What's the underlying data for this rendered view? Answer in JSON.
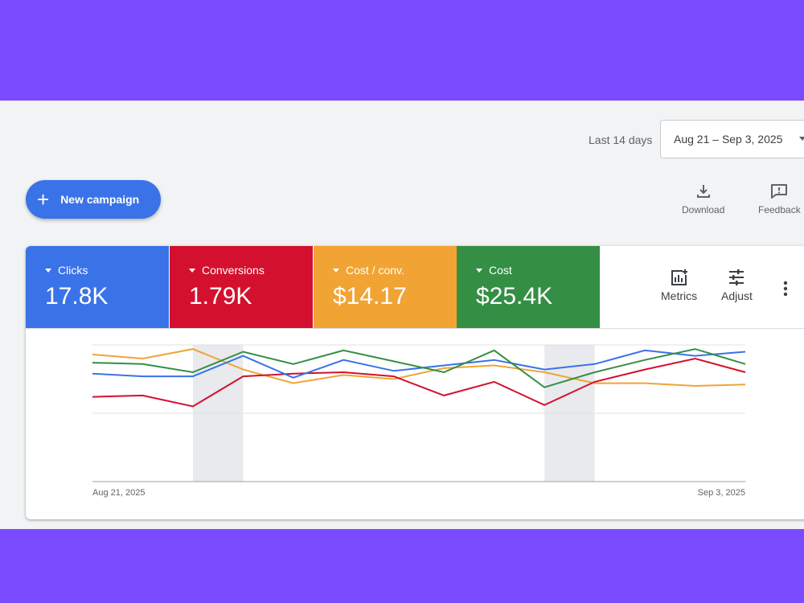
{
  "header": {
    "range_label": "Last 14 days",
    "date_range": "Aug 21 – Sep 3, 2025"
  },
  "actions": {
    "new_campaign": "New campaign",
    "download": "Download",
    "feedback": "Feedback"
  },
  "metrics": [
    {
      "name": "Clicks",
      "value": "17.8K",
      "color": "#3a72e8"
    },
    {
      "name": "Conversions",
      "value": "1.79K",
      "color": "#d3112e"
    },
    {
      "name": "Cost / conv.",
      "value": "$14.17",
      "color": "#f1a434"
    },
    {
      "name": "Cost",
      "value": "$25.4K",
      "color": "#348f44"
    }
  ],
  "chart_tools": {
    "metrics": "Metrics",
    "adjust": "Adjust"
  },
  "chart_data": {
    "type": "line",
    "x_start_label": "Aug 21, 2025",
    "x_end_label": "Sep 3, 2025",
    "ylim": [
      0,
      100
    ],
    "grid": true,
    "shaded_points": [
      [
        2,
        3
      ],
      [
        9,
        10
      ]
    ],
    "series": [
      {
        "color": "#3a72e8",
        "values": [
          79,
          77,
          77,
          92,
          76,
          89,
          81,
          85,
          89,
          82,
          86,
          96,
          92,
          95
        ]
      },
      {
        "color": "#d3112e",
        "values": [
          62,
          63,
          55,
          77,
          79,
          80,
          77,
          63,
          73,
          56,
          73,
          82,
          90,
          80
        ]
      },
      {
        "color": "#f1a434",
        "values": [
          93,
          90,
          97,
          82,
          72,
          78,
          75,
          83,
          85,
          80,
          72,
          72,
          70,
          71
        ]
      },
      {
        "color": "#348f44",
        "values": [
          87,
          86,
          80,
          95,
          86,
          96,
          88,
          80,
          96,
          69,
          80,
          89,
          97,
          86
        ]
      }
    ]
  }
}
